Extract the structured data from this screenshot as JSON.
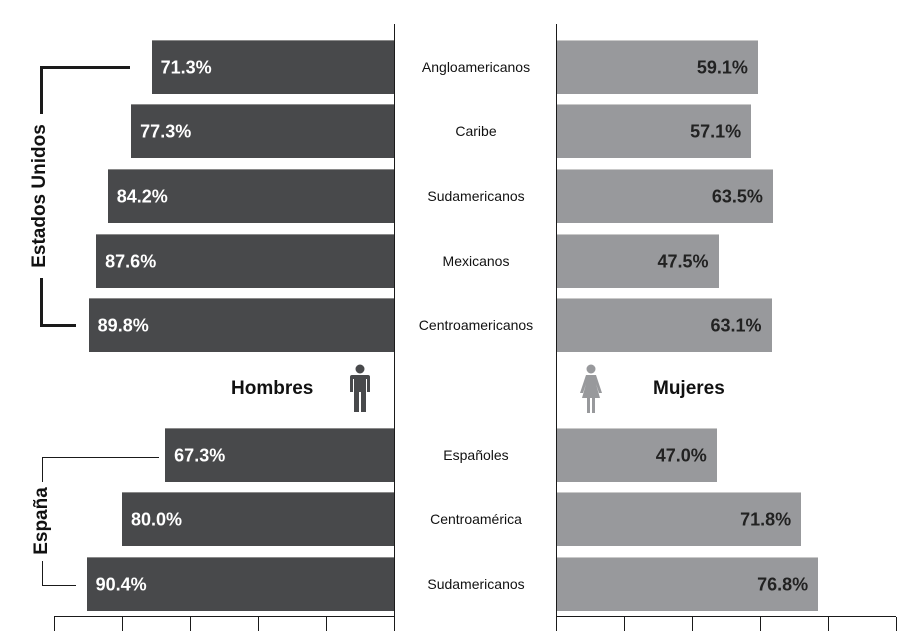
{
  "chart_data": {
    "type": "bar",
    "orientation": "horizontal",
    "layout": "butterfly / population-pyramid style, men left, women right",
    "title": "",
    "groups": [
      {
        "name": "Estados Unidos",
        "categories": [
          "Angloamericanos",
          "Caribe",
          "Sudamericanos",
          "Mexicanos",
          "Centroamericanos"
        ]
      },
      {
        "name": "España",
        "categories": [
          "Españoles",
          "Centroamérica",
          "Sudamericanos"
        ]
      }
    ],
    "categories": [
      "Angloamericanos",
      "Caribe",
      "Sudamericanos",
      "Mexicanos",
      "Centroamericanos",
      "Españoles",
      "Centroamérica",
      "Sudamericanos"
    ],
    "series": [
      {
        "name": "Hombres",
        "color": "#48494b",
        "values": [
          71.3,
          77.3,
          84.2,
          87.6,
          89.8,
          67.3,
          80.0,
          90.4
        ]
      },
      {
        "name": "Mujeres",
        "color": "#98999c",
        "values": [
          59.1,
          57.1,
          63.5,
          47.5,
          63.1,
          47.0,
          71.8,
          76.8
        ]
      }
    ],
    "value_labels": {
      "Hombres": [
        "71.3%",
        "77.3%",
        "84.2%",
        "87.6%",
        "89.8%",
        "67.3%",
        "80.0%",
        "90.4%"
      ],
      "Mujeres": [
        "59.1%",
        "57.1%",
        "63.5%",
        "47.5%",
        "63.1%",
        "47.0%",
        "71.8%",
        "76.8%"
      ]
    },
    "xlim": [
      0,
      100
    ],
    "x_tick_count": 6,
    "x_tick_labels_shown": false,
    "grid": false,
    "legend": [
      {
        "label": "Hombres",
        "icon": "male-person-icon",
        "color": "#48494b"
      },
      {
        "label": "Mujeres",
        "icon": "female-person-icon",
        "color": "#98999c"
      }
    ]
  },
  "labels": {
    "group_us": "Estados Unidos",
    "group_es": "España",
    "legend_men": "Hombres",
    "legend_women": "Mujeres"
  }
}
